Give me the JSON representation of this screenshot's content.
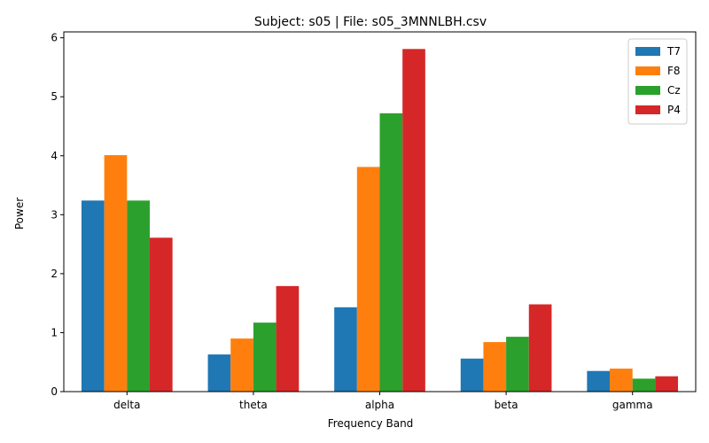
{
  "chart_data": {
    "type": "bar",
    "title": "Subject: s05 | File: s05_3MNNLBH.csv",
    "xlabel": "Frequency Band",
    "ylabel": "Power",
    "categories": [
      "delta",
      "theta",
      "alpha",
      "beta",
      "gamma"
    ],
    "ylim": [
      0,
      6.1
    ],
    "yticks": [
      0,
      1,
      2,
      3,
      4,
      5,
      6
    ],
    "legend_position": "top-right",
    "grid": false,
    "series": [
      {
        "name": "T7",
        "color": "#1f77b4",
        "values": [
          3.24,
          0.63,
          1.43,
          0.56,
          0.35
        ]
      },
      {
        "name": "F8",
        "color": "#ff7f0e",
        "values": [
          4.01,
          0.9,
          3.81,
          0.84,
          0.39
        ]
      },
      {
        "name": "Cz",
        "color": "#2ca02c",
        "values": [
          3.24,
          1.17,
          4.72,
          0.93,
          0.22
        ]
      },
      {
        "name": "P4",
        "color": "#d62728",
        "values": [
          2.61,
          1.79,
          5.81,
          1.48,
          0.26
        ]
      }
    ]
  }
}
